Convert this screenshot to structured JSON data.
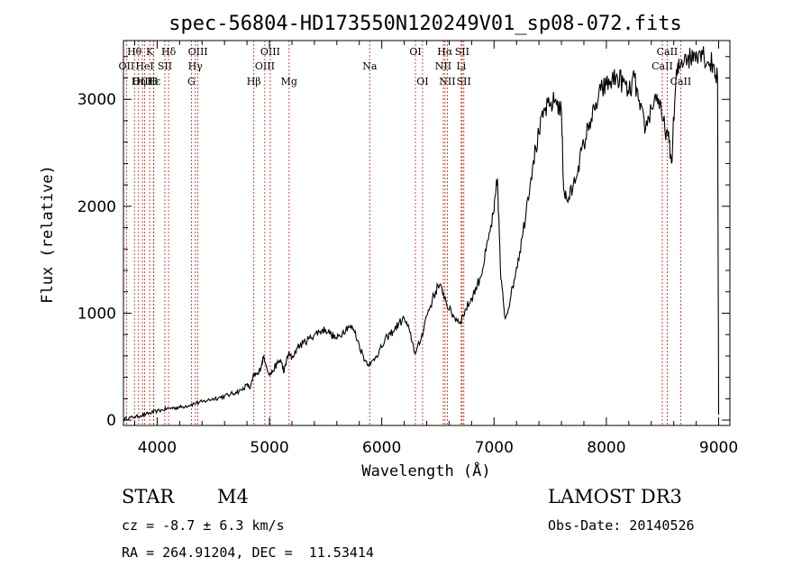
{
  "chart_data": {
    "type": "line",
    "title": "spec-56804-HD173550N120249V01_sp08-072.fits",
    "xlabel": "Wavelength (Å)",
    "ylabel": "Flux (relative)",
    "xlim": [
      3700,
      9100
    ],
    "ylim": [
      -50,
      3550
    ],
    "xticks": [
      4000,
      5000,
      6000,
      7000,
      8000,
      9000
    ],
    "xtick_labels": [
      "4000",
      "5000",
      "6000",
      "7000",
      "8000",
      "9000"
    ],
    "yticks": [
      0,
      1000,
      2000,
      3000
    ],
    "ytick_labels": [
      "0",
      "1000",
      "2000",
      "3000"
    ],
    "series": [
      {
        "name": "flux",
        "x": [
          3700,
          3750,
          3800,
          3850,
          3900,
          3950,
          4000,
          4050,
          4100,
          4150,
          4200,
          4250,
          4300,
          4350,
          4400,
          4450,
          4500,
          4550,
          4600,
          4650,
          4700,
          4750,
          4800,
          4830,
          4860,
          4900,
          4930,
          4950,
          5000,
          5030,
          5070,
          5100,
          5130,
          5150,
          5170,
          5200,
          5250,
          5300,
          5350,
          5400,
          5450,
          5500,
          5550,
          5600,
          5650,
          5700,
          5750,
          5800,
          5850,
          5900,
          5950,
          6000,
          6050,
          6100,
          6150,
          6200,
          6250,
          6300,
          6350,
          6400,
          6450,
          6500,
          6550,
          6600,
          6650,
          6700,
          6750,
          6800,
          6850,
          6900,
          6950,
          7000,
          7030,
          7060,
          7100,
          7150,
          7200,
          7250,
          7300,
          7350,
          7400,
          7450,
          7500,
          7550,
          7600,
          7620,
          7650,
          7700,
          7750,
          7800,
          7850,
          7900,
          7950,
          8000,
          8050,
          8100,
          8150,
          8200,
          8250,
          8300,
          8350,
          8400,
          8450,
          8500,
          8550,
          8580,
          8620,
          8650,
          8700,
          8750,
          8800,
          8850,
          8900,
          8950,
          8990,
          9000
        ],
        "values": [
          10,
          20,
          30,
          40,
          55,
          70,
          85,
          95,
          110,
          115,
          120,
          130,
          145,
          160,
          170,
          185,
          200,
          210,
          225,
          240,
          260,
          280,
          330,
          300,
          420,
          430,
          520,
          600,
          420,
          460,
          530,
          560,
          450,
          550,
          620,
          580,
          680,
          720,
          760,
          800,
          830,
          850,
          800,
          760,
          820,
          880,
          850,
          700,
          560,
          520,
          600,
          680,
          780,
          830,
          900,
          950,
          820,
          620,
          760,
          980,
          1120,
          1260,
          1190,
          1030,
          960,
          920,
          1040,
          1140,
          1260,
          1420,
          1690,
          1950,
          2260,
          1320,
          950,
          1160,
          1430,
          1700,
          2080,
          2430,
          2680,
          2900,
          2940,
          3000,
          2880,
          2160,
          2050,
          2160,
          2380,
          2580,
          2790,
          2900,
          3080,
          3130,
          3180,
          3200,
          3160,
          3050,
          3200,
          2900,
          2730,
          2920,
          3050,
          2800,
          2650,
          2400,
          3200,
          3300,
          3420,
          3380,
          3450,
          3460,
          3350,
          3330,
          3200,
          50
        ]
      }
    ],
    "spectral_lines": [
      {
        "name": "Hθ",
        "wavelength": 3798,
        "row": 1
      },
      {
        "name": "OII",
        "wavelength": 3727,
        "row": 2
      },
      {
        "name": "OIII",
        "wavelength": 3869,
        "row": 3
      },
      {
        "name": "K",
        "wavelength": 3934,
        "row": 1
      },
      {
        "name": "HeI",
        "wavelength": 3889,
        "row": 2
      },
      {
        "name": "Hε",
        "wavelength": 3970,
        "row": 3
      },
      {
        "name": "Hη",
        "wavelength": 3835,
        "row": 3
      },
      {
        "name": "SII",
        "wavelength": 4069,
        "row": 2
      },
      {
        "name": "H",
        "wavelength": 3968,
        "row": 3
      },
      {
        "name": "Hδ",
        "wavelength": 4102,
        "row": 1
      },
      {
        "name": "OIII",
        "wavelength": 4363,
        "row": 1
      },
      {
        "name": "Hγ",
        "wavelength": 4340,
        "row": 2
      },
      {
        "name": "G",
        "wavelength": 4305,
        "row": 3
      },
      {
        "name": "Hβ",
        "wavelength": 4861,
        "row": 3
      },
      {
        "name": "OIII",
        "wavelength": 5007,
        "row": 1
      },
      {
        "name": "OIII",
        "wavelength": 4959,
        "row": 2
      },
      {
        "name": "Mg",
        "wavelength": 5175,
        "row": 3
      },
      {
        "name": "Na",
        "wavelength": 5893,
        "row": 2
      },
      {
        "name": "OI",
        "wavelength": 6300,
        "row": 1
      },
      {
        "name": "OI",
        "wavelength": 6363,
        "row": 3
      },
      {
        "name": "Hα",
        "wavelength": 6563,
        "row": 1
      },
      {
        "name": "NII",
        "wavelength": 6548,
        "row": 2
      },
      {
        "name": "NII",
        "wavelength": 6584,
        "row": 3
      },
      {
        "name": "SII",
        "wavelength": 6716,
        "row": 1
      },
      {
        "name": "Li",
        "wavelength": 6708,
        "row": 2
      },
      {
        "name": "SII",
        "wavelength": 6731,
        "row": 3
      },
      {
        "name": "CaII",
        "wavelength": 8542,
        "row": 1
      },
      {
        "name": "CaII",
        "wavelength": 8498,
        "row": 2
      },
      {
        "name": "CaII",
        "wavelength": 8662,
        "row": 3
      }
    ]
  },
  "info": {
    "class_label": "STAR",
    "subclass": "M4",
    "survey": "LAMOST DR3",
    "redshift": "cz = -8.7 ± 6.3 km/s",
    "obs_date": "Obs-Date: 20140526",
    "coords": "RA = 264.91204, DEC =  11.53414"
  },
  "colors": {
    "line_marker": "#c0392b",
    "spectrum": "#000000",
    "background": "#ffffff"
  }
}
